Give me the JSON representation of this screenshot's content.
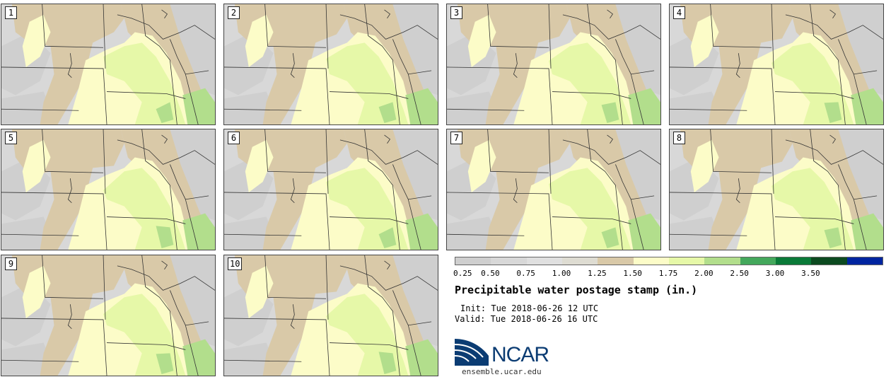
{
  "panels": [
    {
      "label": "1"
    },
    {
      "label": "2"
    },
    {
      "label": "3"
    },
    {
      "label": "4"
    },
    {
      "label": "5"
    },
    {
      "label": "6"
    },
    {
      "label": "7"
    },
    {
      "label": "8"
    },
    {
      "label": "9"
    },
    {
      "label": "10"
    }
  ],
  "colorbar": {
    "colors": [
      "#cfcfcf",
      "#d8d8d8",
      "#e0e0e0",
      "#dedcd2",
      "#d9c9a8",
      "#fcfcc8",
      "#e6f8a8",
      "#b2de8c",
      "#44a85c",
      "#0a7a38",
      "#0c4a20",
      "#0024a0"
    ],
    "ticks": [
      "0.25",
      "0.50",
      "0.75",
      "1.00",
      "1.25",
      "1.50",
      "1.75",
      "2.00",
      "2.50",
      "3.00",
      "3.50"
    ]
  },
  "title": "Precipitable water postage stamp (in.)",
  "init": "Init: Tue 2018-06-26 12 UTC",
  "valid": "Valid: Tue 2018-06-26 16 UTC",
  "logo": {
    "text": "NCAR",
    "color": "#0b3c73"
  },
  "site": "ensemble.ucar.edu"
}
